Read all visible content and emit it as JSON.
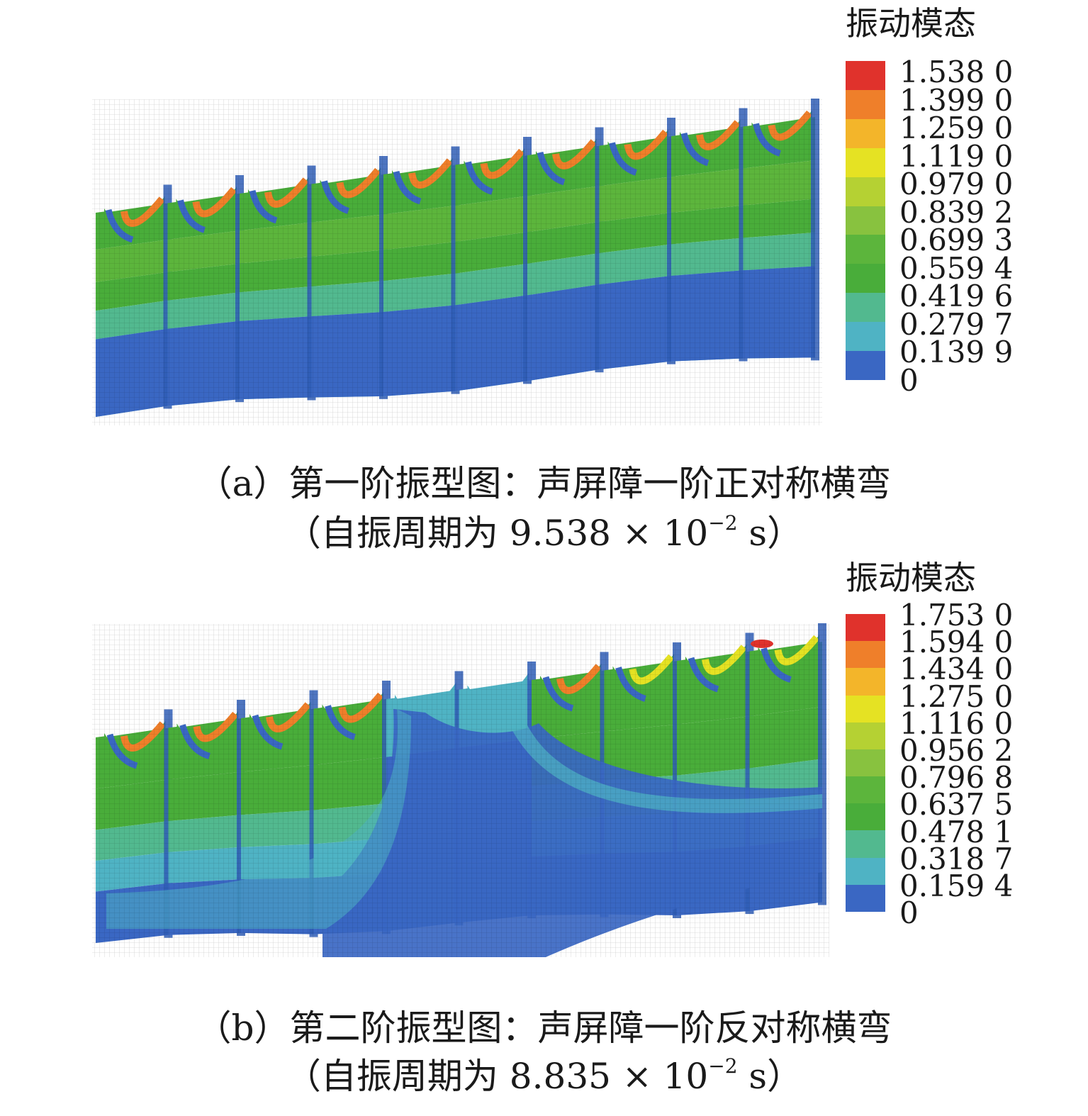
{
  "colors": {
    "band": [
      "#3a67c3",
      "#4fb3c4",
      "#52b98f",
      "#49ad3a",
      "#5cb53c",
      "#88c23f",
      "#b5d133",
      "#e5e223",
      "#f3b52a",
      "#ef7f2a",
      "#e0322c"
    ],
    "mesh_line": "#000000",
    "seam": "#2f5db5"
  },
  "panels": [
    {
      "id": "a",
      "legend_title": "振动模态",
      "legend_values": [
        "1.538 0",
        "1.399 0",
        "1.259 0",
        "1.119 0",
        "0.979 0",
        "0.839 2",
        "0.699 3",
        "0.559 4",
        "0.419 6",
        "0.279 7",
        "0.139 9",
        "0"
      ],
      "caption_line1": "（a）第一阶振型图：声屏障一阶正对称横弯",
      "caption_line2_prefix": "（自振周期为 9.538 × 10",
      "caption_exponent": "−2",
      "caption_line2_suffix": " s）"
    },
    {
      "id": "b",
      "legend_title": "振动模态",
      "legend_values": [
        "1.753 0",
        "1.594 0",
        "1.434 0",
        "1.275 0",
        "1.116 0",
        "0.956 2",
        "0.796 8",
        "0.637 5",
        "0.478 1",
        "0.318 7",
        "0.159 4",
        "0"
      ],
      "caption_line1": "（b）第二阶振型图：声屏障一阶反对称横弯",
      "caption_line2_prefix": "（自振周期为 8.835 × 10",
      "caption_exponent": "−2",
      "caption_line2_suffix": " s）"
    }
  ]
}
